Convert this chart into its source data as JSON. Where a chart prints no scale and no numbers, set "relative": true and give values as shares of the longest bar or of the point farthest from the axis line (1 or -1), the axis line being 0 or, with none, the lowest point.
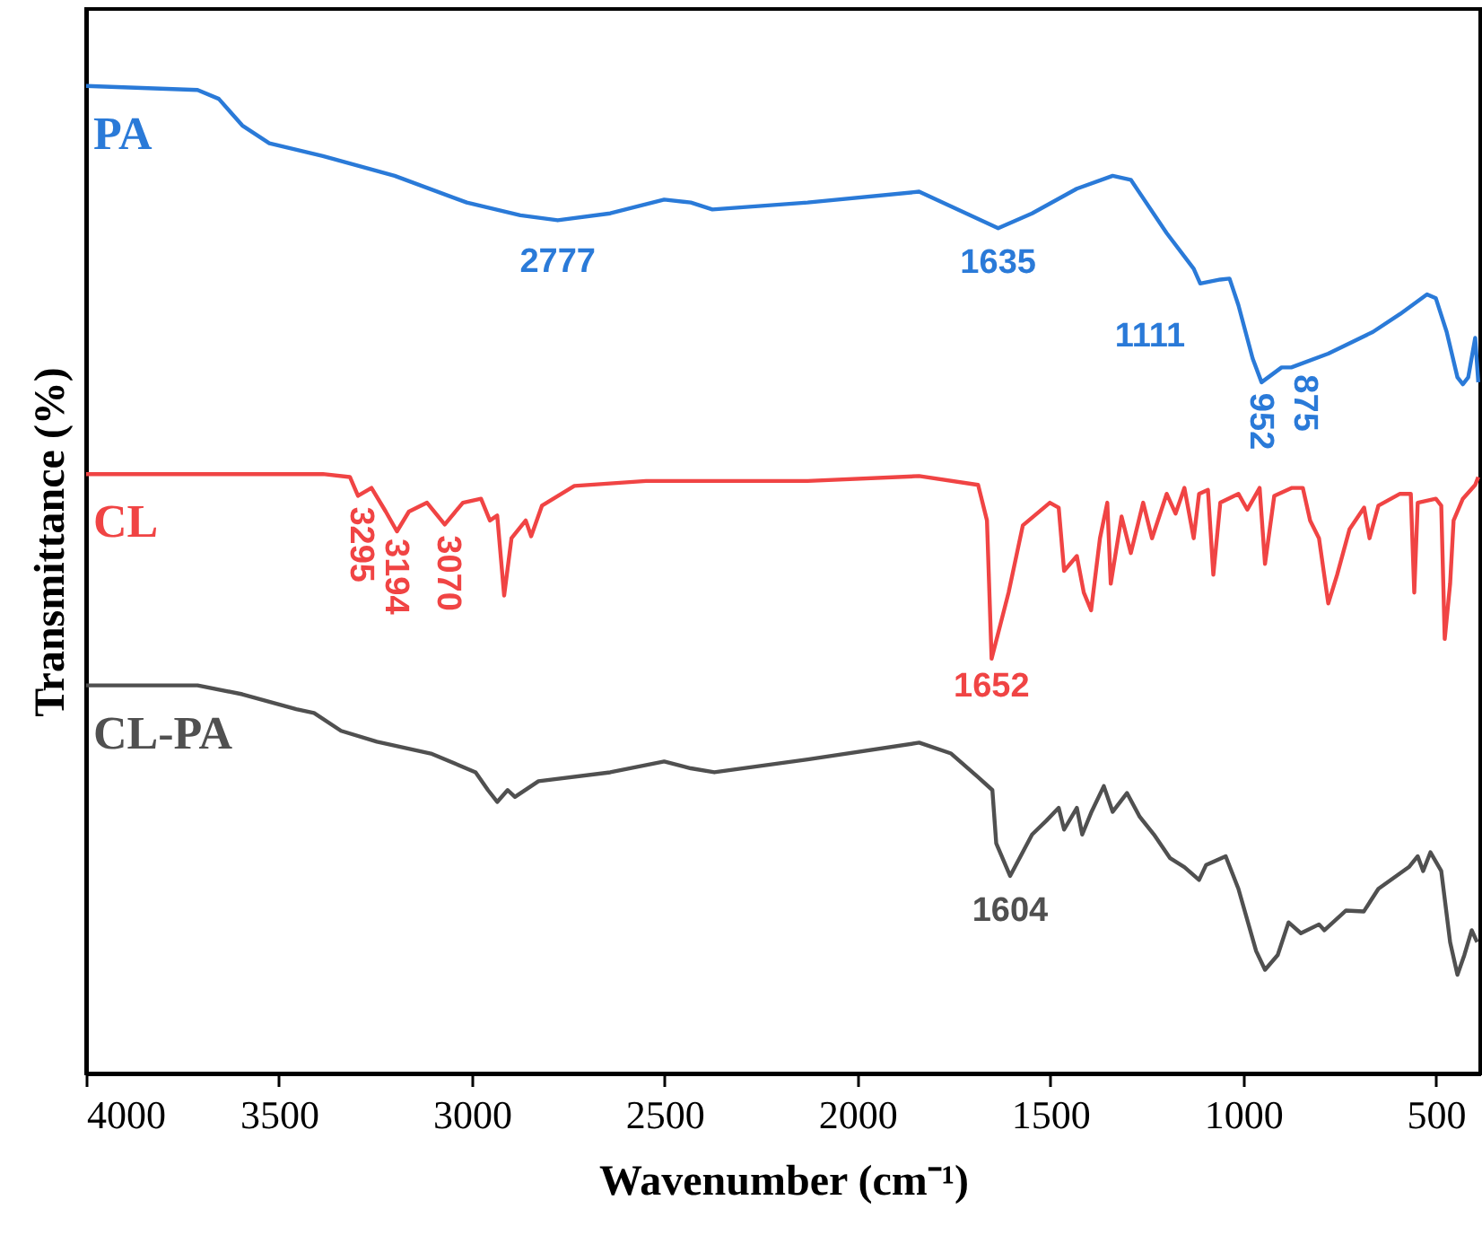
{
  "chart_data": {
    "type": "line",
    "relative": true,
    "xlabel": "Wavenumber (cm⁻¹)",
    "ylabel": "Transmittance (%)",
    "xlim": [
      4000,
      385
    ],
    "xticks": [
      4000,
      3500,
      3000,
      2500,
      2000,
      1500,
      1000,
      500
    ],
    "grid": false,
    "marker": "none",
    "line_style": "solid",
    "series": [
      {
        "name": "PA",
        "color": "#2a7ad8",
        "x": [
          4000,
          3711,
          3656,
          3595,
          3525,
          3386,
          3200,
          3013,
          2874,
          2777,
          2641,
          2501,
          2432,
          2376,
          2129,
          1840,
          1757,
          1635,
          1547,
          1431,
          1338,
          1291,
          1198,
          1128,
          1111,
          1059,
          1035,
          1012,
          975,
          952,
          900,
          875,
          779,
          663,
          593,
          523,
          500,
          472,
          444,
          430,
          416,
          398,
          390
        ],
        "values": [
          1.0,
          0.996,
          0.987,
          0.96,
          0.942,
          0.929,
          0.909,
          0.882,
          0.869,
          0.864,
          0.871,
          0.885,
          0.882,
          0.875,
          0.882,
          0.893,
          0.878,
          0.856,
          0.871,
          0.896,
          0.909,
          0.905,
          0.851,
          0.815,
          0.8,
          0.804,
          0.805,
          0.778,
          0.724,
          0.7,
          0.715,
          0.715,
          0.729,
          0.751,
          0.769,
          0.789,
          0.785,
          0.751,
          0.705,
          0.698,
          0.705,
          0.745,
          0.7
        ]
      },
      {
        "name": "CL",
        "color": "#f04444",
        "x": [
          4000,
          3386,
          3316,
          3295,
          3260,
          3223,
          3194,
          3163,
          3116,
          3070,
          3023,
          2976,
          2953,
          2934,
          2916,
          2897,
          2860,
          2846,
          2818,
          2734,
          2548,
          2129,
          1840,
          1687,
          1664,
          1652,
          1608,
          1571,
          1501,
          1478,
          1464,
          1431,
          1413,
          1394,
          1371,
          1352,
          1343,
          1315,
          1291,
          1259,
          1236,
          1198,
          1175,
          1152,
          1128,
          1114,
          1091,
          1077,
          1059,
          1012,
          989,
          957,
          943,
          919,
          873,
          845,
          826,
          803,
          779,
          756,
          724,
          686,
          672,
          649,
          593,
          565,
          556,
          547,
          500,
          486,
          477,
          463,
          454,
          430,
          398,
          390
        ],
        "values": [
          0.607,
          0.607,
          0.604,
          0.585,
          0.593,
          0.569,
          0.549,
          0.569,
          0.578,
          0.556,
          0.578,
          0.582,
          0.56,
          0.565,
          0.484,
          0.542,
          0.56,
          0.544,
          0.575,
          0.595,
          0.6,
          0.6,
          0.605,
          0.596,
          0.56,
          0.42,
          0.487,
          0.555,
          0.578,
          0.573,
          0.509,
          0.524,
          0.487,
          0.469,
          0.542,
          0.578,
          0.496,
          0.564,
          0.527,
          0.578,
          0.542,
          0.587,
          0.567,
          0.593,
          0.542,
          0.587,
          0.591,
          0.505,
          0.578,
          0.587,
          0.571,
          0.593,
          0.516,
          0.585,
          0.593,
          0.593,
          0.56,
          0.542,
          0.476,
          0.505,
          0.551,
          0.573,
          0.542,
          0.575,
          0.587,
          0.587,
          0.487,
          0.578,
          0.582,
          0.575,
          0.44,
          0.496,
          0.56,
          0.582,
          0.596,
          0.604
        ]
      },
      {
        "name": "CL-PA",
        "color": "#505050",
        "x": [
          4000,
          3711,
          3595,
          3455,
          3409,
          3339,
          3246,
          3106,
          2990,
          2958,
          2934,
          2907,
          2888,
          2827,
          2641,
          2501,
          2432,
          2371,
          2129,
          1840,
          1757,
          1687,
          1650,
          1640,
          1604,
          1547,
          1510,
          1478,
          1464,
          1431,
          1417,
          1394,
          1361,
          1338,
          1301,
          1268,
          1231,
          1189,
          1152,
          1114,
          1096,
          1045,
          1012,
          966,
          943,
          910,
          882,
          850,
          803,
          789,
          733,
          687,
          649,
          570,
          547,
          533,
          514,
          486,
          463,
          444,
          426,
          407,
          393
        ],
        "values": [
          0.393,
          0.393,
          0.384,
          0.369,
          0.365,
          0.347,
          0.336,
          0.324,
          0.305,
          0.287,
          0.275,
          0.287,
          0.28,
          0.296,
          0.305,
          0.316,
          0.309,
          0.305,
          0.318,
          0.335,
          0.324,
          0.3,
          0.287,
          0.233,
          0.2,
          0.242,
          0.256,
          0.269,
          0.247,
          0.269,
          0.242,
          0.264,
          0.291,
          0.265,
          0.284,
          0.26,
          0.242,
          0.218,
          0.209,
          0.196,
          0.211,
          0.22,
          0.187,
          0.124,
          0.105,
          0.12,
          0.153,
          0.142,
          0.151,
          0.145,
          0.165,
          0.164,
          0.187,
          0.209,
          0.22,
          0.205,
          0.224,
          0.205,
          0.133,
          0.1,
          0.12,
          0.145,
          0.133
        ]
      }
    ],
    "annotations": [
      {
        "text": "2777",
        "x": 2777,
        "y": 0.864
      },
      {
        "text": "1635",
        "x": 1635,
        "y": 0.856
      },
      {
        "text": "1111",
        "x": 1111,
        "y": 0.8
      },
      {
        "text": "952",
        "x": 952,
        "y": 0.7
      },
      {
        "text": "875",
        "x": 875,
        "y": 0.715
      },
      {
        "text": "3295",
        "x": 3295,
        "y": 0.585
      },
      {
        "text": "3194",
        "x": 3194,
        "y": 0.549
      },
      {
        "text": "3070",
        "x": 3070,
        "y": 0.556
      },
      {
        "text": "1652",
        "x": 1652,
        "y": 0.42
      },
      {
        "text": "1604",
        "x": 1604,
        "y": 0.2
      }
    ]
  }
}
